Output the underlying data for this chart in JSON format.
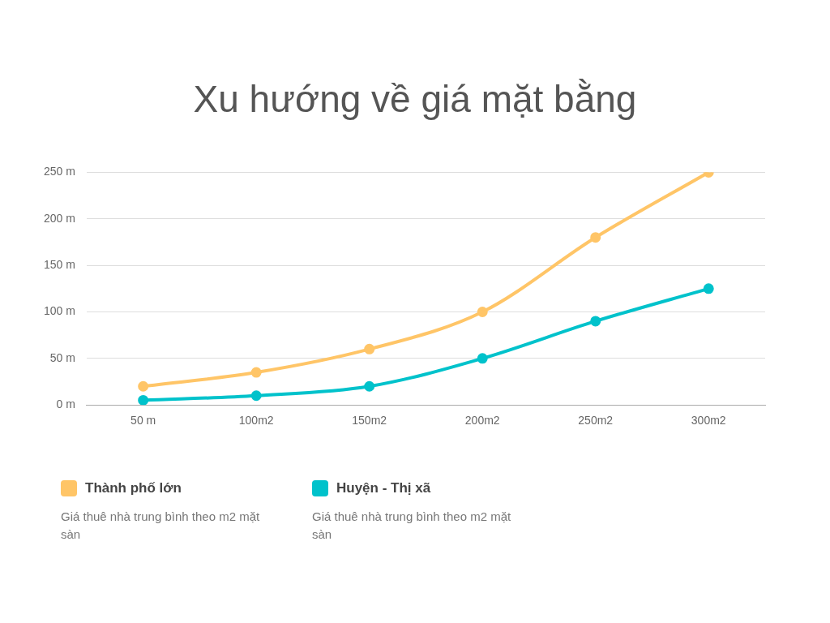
{
  "chart_data": {
    "type": "line",
    "title": "Xu hướng về giá mặt bằng",
    "categories": [
      "50 m",
      "100m2",
      "150m2",
      "200m2",
      "250m2",
      "300m2"
    ],
    "series": [
      {
        "name": "Thành phố lớn",
        "color": "#ffc567",
        "values": [
          20,
          35,
          60,
          100,
          180,
          250
        ]
      },
      {
        "name": "Huyện - Thị xã",
        "color": "#00c2cb",
        "values": [
          5,
          10,
          20,
          50,
          90,
          125
        ]
      }
    ],
    "ylim": [
      0,
      250
    ],
    "yticks": [
      {
        "value": 0,
        "label": "0 m"
      },
      {
        "value": 50,
        "label": "50 m"
      },
      {
        "value": 100,
        "label": "100 m"
      },
      {
        "value": 150,
        "label": "150 m"
      },
      {
        "value": 200,
        "label": "200 m"
      },
      {
        "value": 250,
        "label": "250 m"
      }
    ],
    "grid": "y",
    "legend": "bottom",
    "marker": "circle",
    "line_style": "solid",
    "annotations": [
      "Giá thuê nhà trung bình theo m2 mặt sàn",
      "Giá thuê nhà trung bình theo m2 mặt sàn"
    ]
  }
}
